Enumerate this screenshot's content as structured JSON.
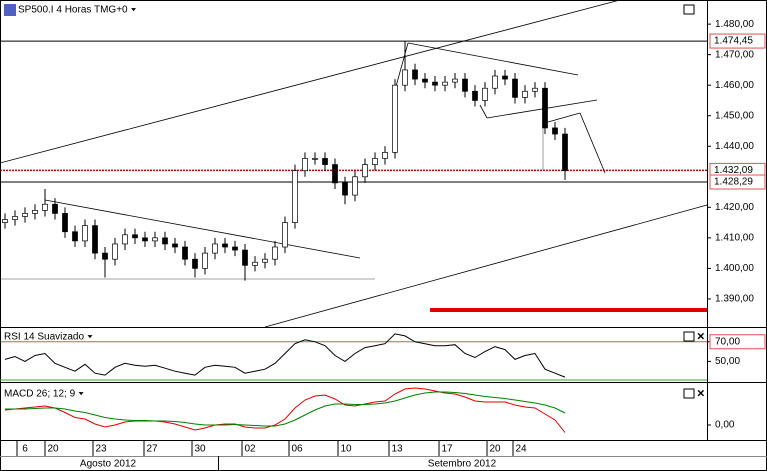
{
  "chart_data": [
    {
      "type": "candlestick",
      "title": "SP500.I 4 Horas TMG+0",
      "open": [
        1415,
        1416,
        1417,
        1418,
        1419,
        1421,
        1418,
        1412,
        1409,
        1414,
        1405,
        1403,
        1408,
        1411,
        1410,
        1409,
        1410,
        1408,
        1407,
        1403,
        1400,
        1405,
        1408,
        1407,
        1406,
        1401,
        1402,
        1403,
        1407,
        1415,
        1432,
        1436,
        1436,
        1434,
        1428,
        1424,
        1430,
        1434,
        1436,
        1438,
        1460,
        1465,
        1462,
        1461,
        1460,
        1461,
        1462,
        1458,
        1455,
        1459,
        1463,
        1462,
        1456,
        1458,
        1459,
        1446,
        1444
      ],
      "high": [
        1418,
        1419,
        1420,
        1421,
        1426,
        1423,
        1420,
        1414,
        1416,
        1416,
        1407,
        1410,
        1413,
        1413,
        1412,
        1412,
        1412,
        1410,
        1409,
        1405,
        1407,
        1410,
        1410,
        1409,
        1408,
        1404,
        1405,
        1409,
        1417,
        1434,
        1438,
        1438,
        1438,
        1436,
        1430,
        1432,
        1436,
        1438,
        1440,
        1462,
        1474.45,
        1467,
        1464,
        1463,
        1463,
        1464,
        1464,
        1460,
        1461,
        1465,
        1465,
        1464,
        1460,
        1461,
        1461,
        1448,
        1446
      ],
      "low": [
        1413,
        1414,
        1415,
        1416,
        1417,
        1416,
        1410,
        1407,
        1407,
        1403,
        1397,
        1401,
        1406,
        1408,
        1407,
        1407,
        1406,
        1405,
        1401,
        1397,
        1398,
        1403,
        1405,
        1404,
        1396,
        1399,
        1400,
        1401,
        1405,
        1413,
        1430,
        1434,
        1432,
        1426,
        1421,
        1422,
        1428,
        1432,
        1434,
        1436,
        1458,
        1460,
        1459,
        1458,
        1458,
        1459,
        1456,
        1453,
        1453,
        1457,
        1460,
        1454,
        1454,
        1456,
        1444,
        1442,
        1429
      ],
      "close": [
        1416,
        1417,
        1418,
        1419,
        1421,
        1418,
        1412,
        1409,
        1414,
        1405,
        1403,
        1408,
        1411,
        1410,
        1409,
        1410,
        1408,
        1407,
        1403,
        1400,
        1405,
        1408,
        1407,
        1406,
        1401,
        1402,
        1403,
        1407,
        1415,
        1432,
        1436,
        1436,
        1434,
        1428,
        1424,
        1430,
        1434,
        1436,
        1438,
        1460,
        1465,
        1462,
        1461,
        1460,
        1461,
        1462,
        1458,
        1455,
        1459,
        1463,
        1462,
        1456,
        1458,
        1459,
        1446,
        1444,
        1432
      ],
      "up_color": "#ffffff",
      "down_color": "#000000",
      "ylim": [
        1380.8,
        1487.9
      ],
      "yticks": [
        {
          "value": 1480,
          "label": "1.480,00"
        },
        {
          "value": 1470,
          "label": "1.470,00"
        },
        {
          "value": 1460,
          "label": "1.460,00"
        },
        {
          "value": 1450,
          "label": "1.450,00"
        },
        {
          "value": 1440,
          "label": "1.440,00"
        },
        {
          "value": 1420,
          "label": "1.420,00"
        },
        {
          "value": 1410,
          "label": "1.410,00"
        },
        {
          "value": 1400,
          "label": "1.400,00"
        },
        {
          "value": 1390,
          "label": "1.390,00"
        }
      ],
      "levels": [
        {
          "value": 1474.45,
          "label": "1.474,45",
          "color": "#000000",
          "style": "solid"
        },
        {
          "value": 1432.09,
          "label": "1.432,09",
          "color": "#c00000",
          "style": "dotted"
        },
        {
          "value": 1428.29,
          "label": "1.428,29",
          "color": "#000000",
          "style": "solid"
        }
      ]
    },
    {
      "type": "line",
      "title": "RSI 14 Suavizado",
      "series": [
        {
          "color": "#000000",
          "values": [
            52,
            55,
            50,
            56,
            58,
            48,
            44,
            40,
            47,
            38,
            36,
            44,
            48,
            46,
            45,
            46,
            43,
            40,
            38,
            36,
            44,
            46,
            45,
            44,
            38,
            40,
            42,
            48,
            58,
            68,
            72,
            70,
            66,
            56,
            50,
            58,
            64,
            66,
            68,
            78,
            76,
            70,
            68,
            66,
            66,
            67,
            58,
            54,
            60,
            65,
            62,
            52,
            56,
            58,
            42,
            38,
            34
          ]
        }
      ],
      "ylim": [
        30,
        83
      ],
      "yticks": [
        {
          "value": 70,
          "label": "70,00"
        },
        {
          "value": 50,
          "label": "50,00"
        }
      ],
      "tick_line_colors": [
        "#e05050",
        "none"
      ]
    },
    {
      "type": "line",
      "title": "MACD 26; 12; 9",
      "series": [
        {
          "color": "#e00000",
          "values": [
            3,
            3.2,
            3.4,
            3.6,
            3.8,
            3.4,
            2.5,
            1.5,
            1.2,
            0.2,
            -0.4,
            0,
            0.6,
            0.8,
            0.8,
            0.8,
            0.6,
            0.2,
            -0.4,
            -1,
            -0.6,
            0,
            0.2,
            0.2,
            -0.4,
            -0.6,
            -0.6,
            0,
            1.2,
            3.4,
            5,
            5.8,
            6,
            5.2,
            4,
            3.8,
            4.2,
            4.6,
            4.8,
            6.2,
            7.2,
            7.4,
            7.2,
            6.8,
            6.4,
            6.2,
            5.6,
            4.8,
            4.6,
            4.6,
            4.6,
            4,
            3.6,
            3.4,
            2.2,
            1,
            -1.5
          ]
        },
        {
          "color": "#008000",
          "values": [
            3.2,
            3.2,
            3.2,
            3.3,
            3.4,
            3.4,
            3.2,
            2.8,
            2.5,
            2,
            1.5,
            1.2,
            1,
            0.9,
            0.9,
            0.8,
            0.8,
            0.7,
            0.5,
            0.2,
            0,
            0,
            0,
            0.1,
            0,
            -0.1,
            -0.2,
            -0.2,
            0.2,
            1,
            2,
            3,
            3.8,
            4.2,
            4.2,
            4.1,
            4.1,
            4.2,
            4.4,
            4.8,
            5.4,
            6,
            6.4,
            6.6,
            6.6,
            6.5,
            6.3,
            6,
            5.7,
            5.5,
            5.3,
            5,
            4.7,
            4.4,
            4,
            3.4,
            2.4
          ]
        }
      ],
      "ylim": [
        -3,
        8.2
      ],
      "yticks": [
        {
          "value": 0,
          "label": "0,00"
        }
      ],
      "tick_line_colors": [
        "none"
      ]
    }
  ],
  "x_axis": {
    "xlim": [
      -0.5,
      70.2
    ],
    "xticks": [
      {
        "value": 2,
        "label": "6"
      },
      {
        "value": 4.8,
        "label": "20"
      },
      {
        "value": 9.6,
        "label": "23"
      },
      {
        "value": 14.7,
        "label": "27"
      },
      {
        "value": 19.5,
        "label": "30"
      },
      {
        "value": 24.5,
        "label": "02"
      },
      {
        "value": 29.2,
        "label": "06"
      },
      {
        "value": 34.1,
        "label": "10"
      },
      {
        "value": 39.2,
        "label": "13"
      },
      {
        "value": 44.2,
        "label": "17"
      },
      {
        "value": 49,
        "label": "20"
      },
      {
        "value": 51.6,
        "label": "24"
      }
    ],
    "months": [
      "Agosto 2012",
      "Setembro 2012"
    ]
  }
}
